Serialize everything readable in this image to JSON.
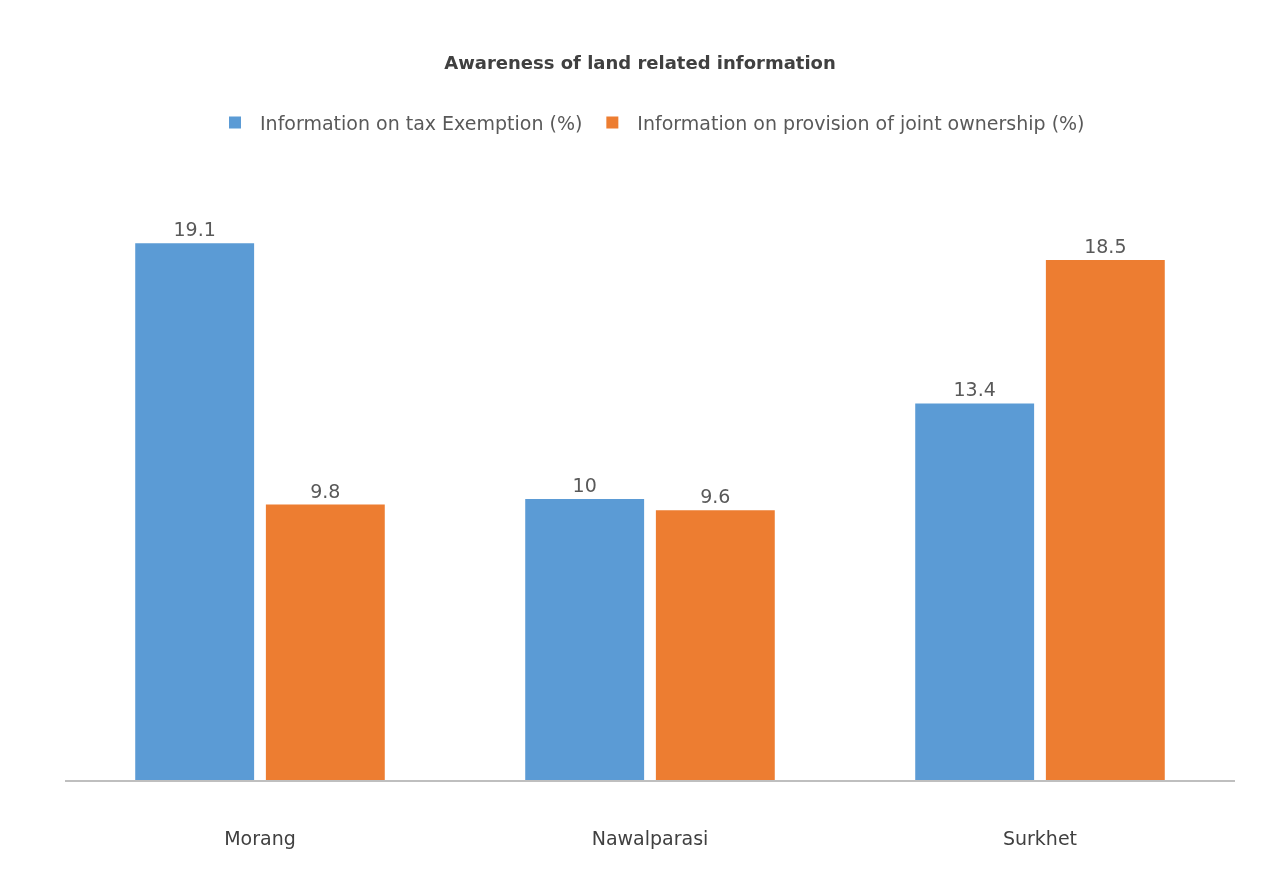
{
  "chart_data": {
    "type": "bar",
    "title": "Awareness of land related information",
    "categories": [
      "Morang",
      "Nawalparasi",
      "Surkhet"
    ],
    "series": [
      {
        "name": "Information on tax Exemption (%)",
        "color": "#5b9bd5",
        "values": [
          19.1,
          10,
          13.4
        ]
      },
      {
        "name": "Information on provision of joint ownership (%)",
        "color": "#ed7d31",
        "values": [
          9.8,
          9.6,
          18.5
        ]
      }
    ],
    "data_labels": true,
    "legend": "top",
    "tick_labels": "x"
  }
}
